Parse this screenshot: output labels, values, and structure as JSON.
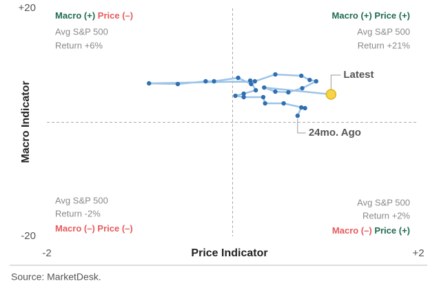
{
  "chart_data": {
    "type": "line",
    "x_label": "Price Indicator",
    "y_label": "Macro Indicator",
    "xlim": [
      -2,
      2
    ],
    "ylim": [
      -20,
      20
    ],
    "xticks": [
      -2,
      {
        "value": 2,
        "label": "+2"
      }
    ],
    "yticks": [
      -20,
      {
        "value": 20,
        "label": "+20"
      }
    ],
    "line_color": "#9cc4e8",
    "point_color": "#2f6fb0",
    "latest_color": "#f5d547",
    "x": [
      0.7,
      0.74,
      0.78,
      0.55,
      0.35,
      0.33,
      0.12,
      0.03,
      0.12,
      0.25,
      0.19,
      0.2,
      0.06,
      -0.2,
      -0.29,
      -0.59,
      -0.9,
      0.24,
      0.46,
      0.74,
      0.83,
      0.9,
      0.75,
      0.6,
      0.46,
      0.34,
      1.06
    ],
    "values": [
      1.15,
      2.6,
      2.48,
      3.32,
      3.32,
      4.41,
      4.41,
      4.65,
      5.02,
      5.62,
      7.31,
      6.71,
      7.8,
      7.19,
      7.19,
      6.71,
      6.83,
      7.19,
      8.4,
      8.16,
      7.43,
      7.19,
      5.98,
      5.26,
      5.38,
      6.1,
      4.9
    ],
    "annotations": {
      "latest": "Latest",
      "start": "24mo. Ago"
    },
    "quadrants": [
      {
        "macro": "Macro (+)",
        "price": "Price (–)",
        "macro_color": "#1e6b4f",
        "price_color": "#e8595b",
        "avg": "Avg S&P 500",
        "ret": "Return +6%"
      },
      {
        "macro": "Macro (+)",
        "price": "Price (+)",
        "macro_color": "#1e6b4f",
        "price_color": "#1e6b4f",
        "avg": "Avg S&P 500",
        "ret": "Return +21%"
      },
      {
        "macro": "Macro (–)",
        "price": "Price (–)",
        "macro_color": "#e8595b",
        "price_color": "#e8595b",
        "avg": "Avg S&P 500",
        "ret": "Return -2%"
      },
      {
        "macro": "Macro (–)",
        "price": "Price (+)",
        "macro_color": "#e8595b",
        "price_color": "#1e6b4f",
        "avg": "Avg S&P 500",
        "ret": "Return +2%"
      }
    ],
    "source": "Source: MarketDesk."
  }
}
